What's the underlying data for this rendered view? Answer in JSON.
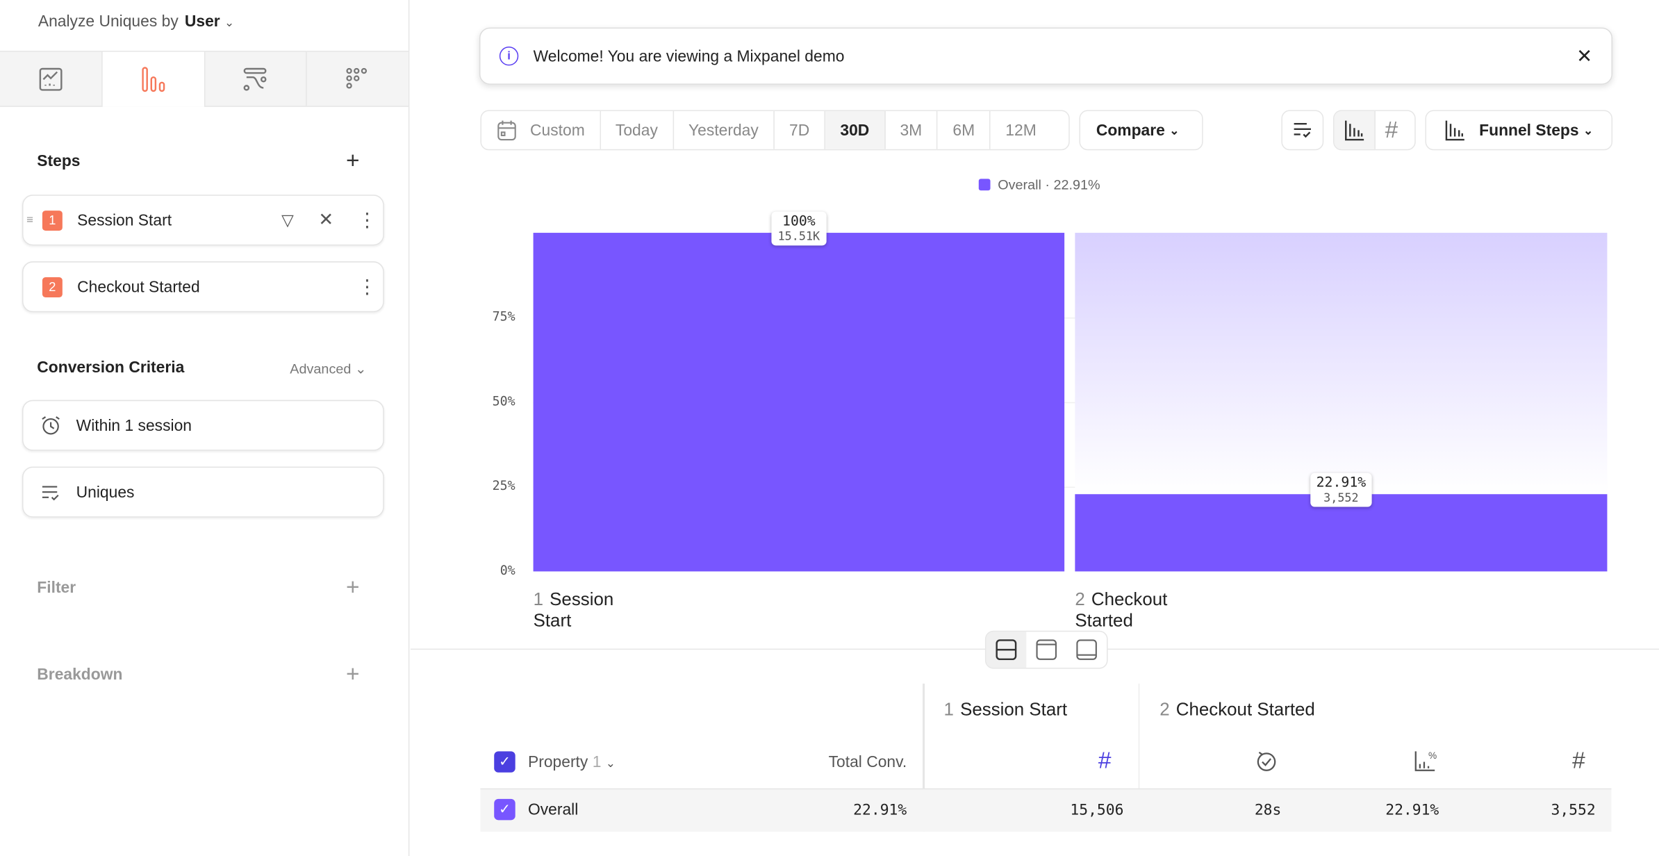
{
  "sidebar": {
    "analyze_label": "Analyze Uniques by",
    "analyze_value": "User",
    "tabs": [
      {
        "icon": "insights-icon"
      },
      {
        "icon": "funnels-icon",
        "active": true
      },
      {
        "icon": "flows-icon"
      },
      {
        "icon": "retention-icon"
      }
    ],
    "steps_title": "Steps",
    "steps": [
      {
        "num": "1",
        "name": "Session Start"
      },
      {
        "num": "2",
        "name": "Checkout Started"
      }
    ],
    "conversion_title": "Conversion Criteria",
    "advanced_label": "Advanced",
    "criteria": [
      {
        "icon": "alarm-clock-icon",
        "label": "Within 1 session"
      },
      {
        "icon": "list-check-icon",
        "label": "Uniques"
      }
    ],
    "filter_label": "Filter",
    "breakdown_label": "Breakdown"
  },
  "banner": {
    "text": "Welcome! You are viewing a Mixpanel demo"
  },
  "toolbar": {
    "date_ranges": [
      "Custom",
      "Today",
      "Yesterday",
      "7D",
      "30D",
      "3M",
      "6M",
      "12M"
    ],
    "selected_range": "30D",
    "compare_label": "Compare",
    "chart_type_label": "Funnel Steps"
  },
  "colors": {
    "accent": "#7856ff",
    "step_badge": "#f6785a"
  },
  "chart_data": {
    "type": "bar",
    "legend": "Overall · 22.91%",
    "categories": [
      "Session Start",
      "Checkout Started"
    ],
    "step_numbers": [
      "1",
      "2"
    ],
    "values": [
      100,
      22.91
    ],
    "counts": [
      "15.51K",
      "3,552"
    ],
    "value_labels": [
      "100%",
      "22.91%"
    ],
    "yticks": [
      "0%",
      "25%",
      "50%",
      "75%"
    ],
    "ylim": [
      0,
      100
    ]
  },
  "table": {
    "steps": [
      {
        "num": "1",
        "name": "Session Start"
      },
      {
        "num": "2",
        "name": "Checkout Started"
      }
    ],
    "property_label": "Property",
    "property_count": "1",
    "total_conv_label": "Total Conv.",
    "rows": [
      {
        "label": "Overall",
        "total_conv": "22.91%",
        "step1_count": "15,506",
        "time": "28s",
        "conv": "22.91%",
        "step2_count": "3,552"
      }
    ]
  }
}
